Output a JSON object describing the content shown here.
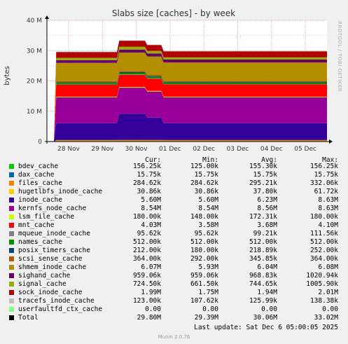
{
  "chart_data": {
    "type": "area",
    "stacked": true,
    "title": "Slabs size [caches] - by week",
    "ylabel": "bytes",
    "ylim": [
      0,
      40000000
    ],
    "yticks": [
      "0",
      "10 M",
      "20 M",
      "30 M",
      "40 M"
    ],
    "xticks": [
      "28 Nov",
      "29 Nov",
      "30 Nov",
      "01 Dec",
      "02 Dec",
      "03 Dec",
      "04 Dec",
      "05 Dec"
    ],
    "grid": true,
    "legend_position": "bottom",
    "columns": [
      "Cur:",
      "Min:",
      "Avg:",
      "Max:"
    ],
    "series": [
      {
        "name": "bdev_cache",
        "color": "#00cc00",
        "cur": "156.25k",
        "min": "125.00k",
        "avg": "155.30k",
        "max": "156.25k"
      },
      {
        "name": "dax_cache",
        "color": "#0066b3",
        "cur": "15.75k",
        "min": "15.75k",
        "avg": "15.75k",
        "max": "15.75k"
      },
      {
        "name": "files_cache",
        "color": "#ff8000",
        "cur": "284.62k",
        "min": "284.62k",
        "avg": "295.21k",
        "max": "332.06k"
      },
      {
        "name": "hugetlbfs_inode_cache",
        "color": "#ffcc00",
        "cur": "30.86k",
        "min": "30.86k",
        "avg": "37.80k",
        "max": "61.72k"
      },
      {
        "name": "inode_cache",
        "color": "#330099",
        "cur": "5.60M",
        "min": "5.60M",
        "avg": "6.23M",
        "max": "8.63M"
      },
      {
        "name": "kernfs_node_cache",
        "color": "#990099",
        "cur": "8.54M",
        "min": "8.54M",
        "avg": "8.56M",
        "max": "8.63M"
      },
      {
        "name": "lsm_file_cache",
        "color": "#ccff00",
        "cur": "180.00k",
        "min": "148.00k",
        "avg": "172.31k",
        "max": "180.00k"
      },
      {
        "name": "mnt_cache",
        "color": "#ff0000",
        "cur": "4.03M",
        "min": "3.58M",
        "avg": "3.68M",
        "max": "4.10M"
      },
      {
        "name": "mqueue_inode_cache",
        "color": "#808080",
        "cur": "95.62k",
        "min": "95.62k",
        "avg": "99.21k",
        "max": "111.56k"
      },
      {
        "name": "names_cache",
        "color": "#008f00",
        "cur": "512.00k",
        "min": "512.00k",
        "avg": "512.00k",
        "max": "512.00k"
      },
      {
        "name": "posix_timers_cache",
        "color": "#00487d",
        "cur": "212.00k",
        "min": "180.00k",
        "avg": "218.89k",
        "max": "252.00k"
      },
      {
        "name": "scsi_sense_cache",
        "color": "#b35a00",
        "cur": "364.00k",
        "min": "292.00k",
        "avg": "345.85k",
        "max": "364.00k"
      },
      {
        "name": "shmem_inode_cache",
        "color": "#b38f00",
        "cur": "6.07M",
        "min": "5.93M",
        "avg": "6.04M",
        "max": "6.08M"
      },
      {
        "name": "sighand_cache",
        "color": "#6b006b",
        "cur": "959.06k",
        "min": "959.06k",
        "avg": "968.83k",
        "max": "1020.94k"
      },
      {
        "name": "signal_cache",
        "color": "#8fb300",
        "cur": "724.50k",
        "min": "661.50k",
        "avg": "744.65k",
        "max": "1005.90k"
      },
      {
        "name": "sock_inode_cache",
        "color": "#b30000",
        "cur": "1.99M",
        "min": "1.75M",
        "avg": "1.94M",
        "max": "2.01M"
      },
      {
        "name": "tracefs_inode_cache",
        "color": "#bebebe",
        "cur": "123.00k",
        "min": "107.62k",
        "avg": "125.99k",
        "max": "138.38k"
      },
      {
        "name": "userfaultfd_ctx_cache",
        "color": "#80ff80",
        "cur": "0.00",
        "min": "0.00",
        "avg": "0.00",
        "max": "0.00"
      },
      {
        "name": "Total",
        "color": "#000000",
        "cur": "29.80M",
        "min": "29.39M",
        "avg": "30.06M",
        "max": "33.02M"
      }
    ],
    "last_update": "Last update: Sat Dec  6 05:00:05 2025",
    "footer": "Munin 2.0.76",
    "side_label": "RRDTOOL / TOBI OETIKER"
  }
}
